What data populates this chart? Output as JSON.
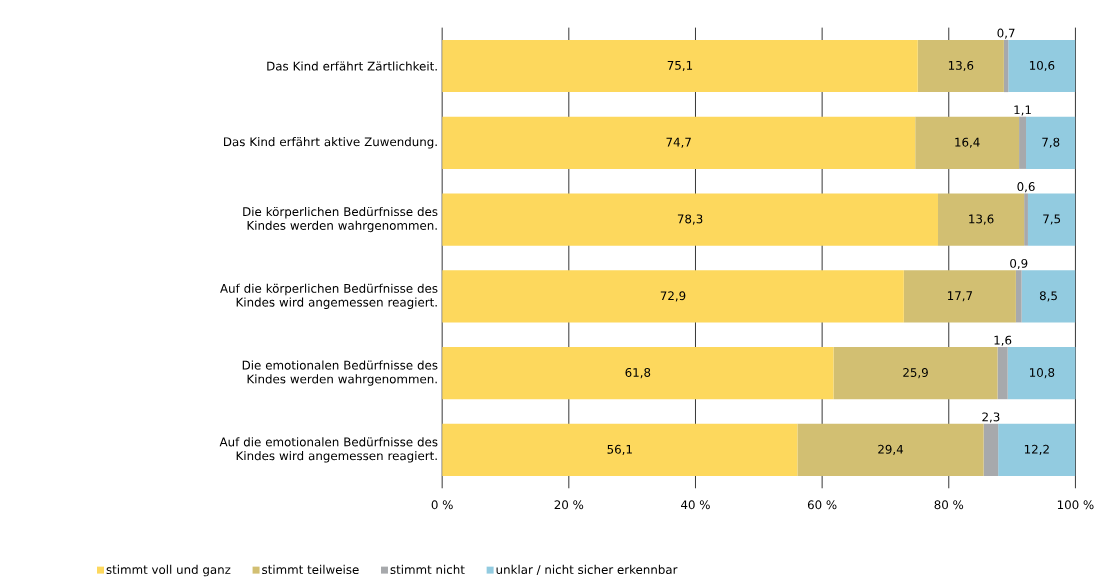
{
  "chart_data": {
    "type": "bar",
    "orientation": "horizontal",
    "stacked": true,
    "categories": [
      "Das Kind erfährt Zärtlichkeit.",
      "Das Kind erfährt aktive Zuwendung.",
      "Die körperlichen Bedürfnisse des Kindes werden wahrgenommen.",
      "Auf die körperlichen Bedürfnisse des Kindes wird angemessen reagiert.",
      "Die emotionalen Bedürfnisse des Kindes werden wahrgenommen.",
      "Auf die emotionalen Bedürfnisse des Kindes wird angemessen reagiert."
    ],
    "series": [
      {
        "name": "stimmt voll und ganz",
        "color": "#fdd85d",
        "values": [
          75.1,
          74.7,
          78.3,
          72.9,
          61.8,
          56.1
        ],
        "value_labels": [
          "75,1",
          "74,7",
          "78,3",
          "72,9",
          "61,8",
          "56,1"
        ]
      },
      {
        "name": "stimmt teilweise",
        "color": "#d2bf72",
        "values": [
          13.6,
          16.4,
          13.6,
          17.7,
          25.9,
          29.4
        ],
        "value_labels": [
          "13,6",
          "16,4",
          "13,6",
          "17,7",
          "25,9",
          "29,4"
        ]
      },
      {
        "name": "stimmt nicht",
        "color": "#a7a9ac",
        "values": [
          0.7,
          1.1,
          0.6,
          0.9,
          1.6,
          2.3
        ],
        "value_labels": [
          "0,7",
          "1,1",
          "0,6",
          "0,9",
          "1,6",
          "2,3"
        ]
      },
      {
        "name": "unklar / nicht sicher erkennbar",
        "color": "#92cbe0",
        "values": [
          10.6,
          7.8,
          7.5,
          8.5,
          10.8,
          12.2
        ],
        "value_labels": [
          "10,6",
          "7,8",
          "7,5",
          "8,5",
          "10,8",
          "12,2"
        ]
      }
    ],
    "xlim": [
      0,
      100
    ],
    "xticks": [
      {
        "value": 0,
        "label": "0 %"
      },
      {
        "value": 20,
        "label": "20 %"
      },
      {
        "value": 40,
        "label": "40 %"
      },
      {
        "value": 60,
        "label": "60 %"
      },
      {
        "value": 80,
        "label": "80 %"
      },
      {
        "value": 100,
        "label": "100 %"
      }
    ],
    "grid": "x",
    "legend": "bottom"
  }
}
